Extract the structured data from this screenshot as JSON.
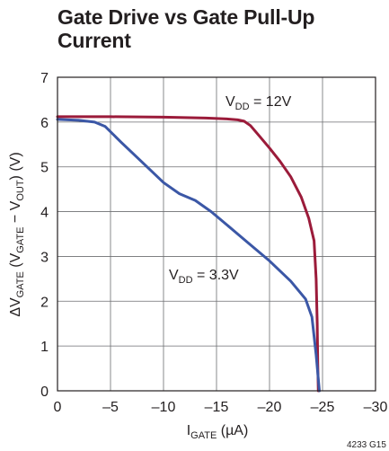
{
  "chart_data": {
    "type": "line",
    "title": "Gate Drive vs Gate Pull-Up Current",
    "xlabel": {
      "main": "I",
      "sub": "GATE",
      "suffix": " (µA)"
    },
    "ylabel": {
      "prefix": "ΔV",
      "sub1": "GATE",
      "mid1": " (V",
      "sub2": "GATE",
      "mid2": " − V",
      "sub3": "OUT",
      "suffix": ") (V)"
    },
    "xlim": [
      0,
      -30
    ],
    "ylim": [
      0,
      7
    ],
    "xticks": [
      0,
      -5,
      -10,
      -15,
      -20,
      -25,
      -30
    ],
    "xtick_labels": [
      "0",
      "–5",
      "–10",
      "–15",
      "–20",
      "–25",
      "–30"
    ],
    "yticks": [
      0,
      1,
      2,
      3,
      4,
      5,
      6,
      7
    ],
    "ytick_labels": [
      "0",
      "1",
      "2",
      "3",
      "4",
      "5",
      "6",
      "7"
    ],
    "grid": true,
    "legend": "none",
    "series": [
      {
        "name": "VDD = 12V",
        "label": {
          "main": "V",
          "sub": "DD",
          "suffix": " = 12V"
        },
        "color": "#9b1b3a",
        "x": [
          0,
          -5,
          -10,
          -14,
          -16,
          -17,
          -17.6,
          -18.2,
          -19,
          -20,
          -21,
          -22,
          -23,
          -23.7,
          -24.2,
          -24.4,
          -24.5,
          -24.55,
          -24.6
        ],
        "y": [
          6.12,
          6.12,
          6.11,
          6.09,
          6.07,
          6.05,
          6.02,
          5.92,
          5.7,
          5.42,
          5.12,
          4.78,
          4.32,
          3.85,
          3.35,
          2.5,
          1.5,
          0.6,
          0
        ]
      },
      {
        "name": "VDD = 3.3V",
        "label": {
          "main": "V",
          "sub": "DD",
          "suffix": " = 3.3V"
        },
        "color": "#3b57a6",
        "x": [
          0,
          -2,
          -3.5,
          -4.5,
          -6,
          -8,
          -10,
          -11.5,
          -13,
          -14.5,
          -16,
          -18,
          -20,
          -22,
          -23.4,
          -24,
          -24.4,
          -24.7
        ],
        "y": [
          6.06,
          6.04,
          6.0,
          5.9,
          5.55,
          5.1,
          4.65,
          4.4,
          4.25,
          4.0,
          3.7,
          3.3,
          2.9,
          2.45,
          2.05,
          1.65,
          0.8,
          0
        ]
      }
    ],
    "figure_code": "4233 G15"
  }
}
